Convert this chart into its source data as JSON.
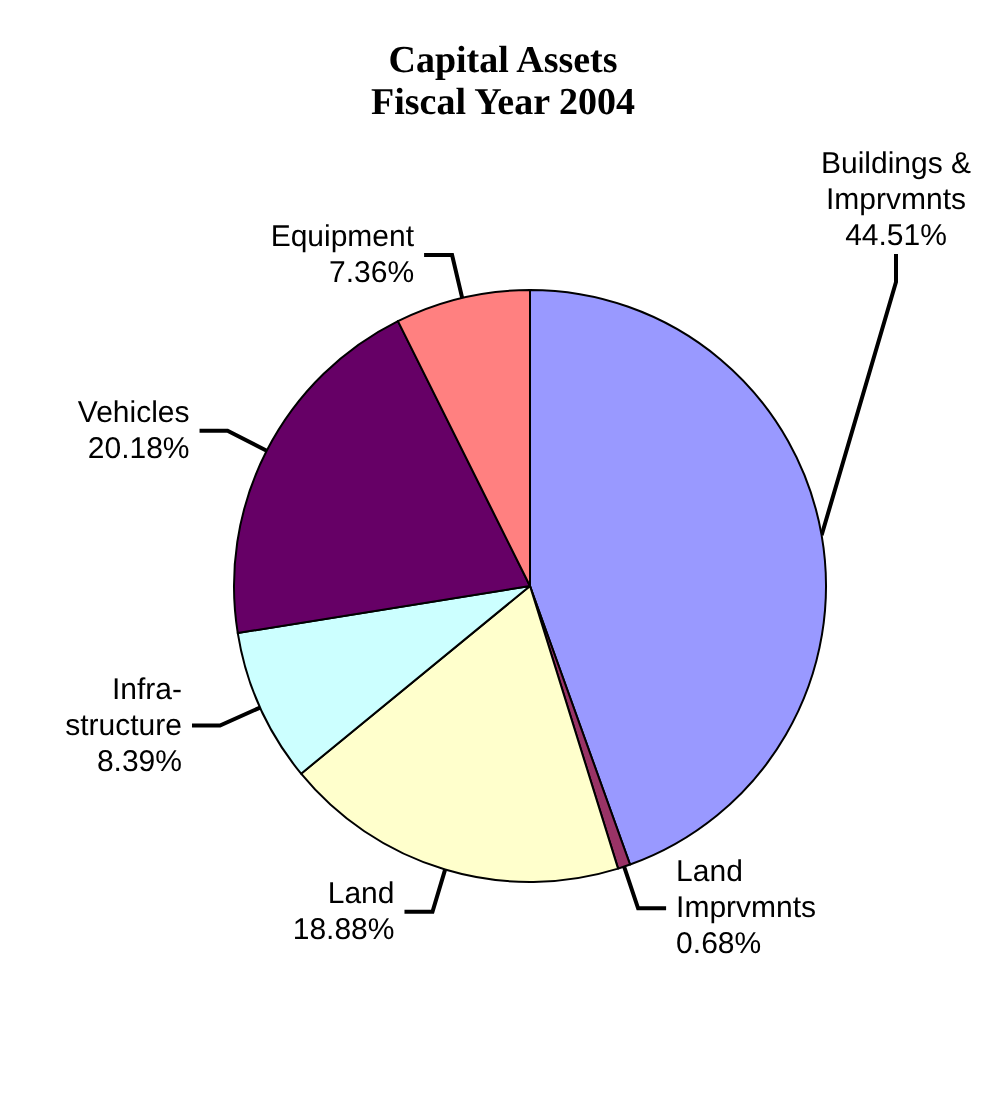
{
  "chart_data": {
    "type": "pie",
    "title": "Capital Assets",
    "subtitle": "Fiscal Year 2004",
    "categories": [
      "Buildings &\nImprvmnts",
      "Land\nImprvmnts",
      "Land",
      "Infra-\nstructure",
      "Vehicles",
      "Equipment"
    ],
    "values": [
      44.51,
      0.68,
      18.88,
      8.39,
      20.18,
      7.36
    ],
    "colors": [
      "#9999ff",
      "#993366",
      "#ffffcc",
      "#ccffff",
      "#660066",
      "#ff8080"
    ],
    "value_labels": [
      "44.51%",
      "0.68%",
      "18.88%",
      "8.39%",
      "20.18%",
      "7.36%"
    ],
    "legend": false
  }
}
